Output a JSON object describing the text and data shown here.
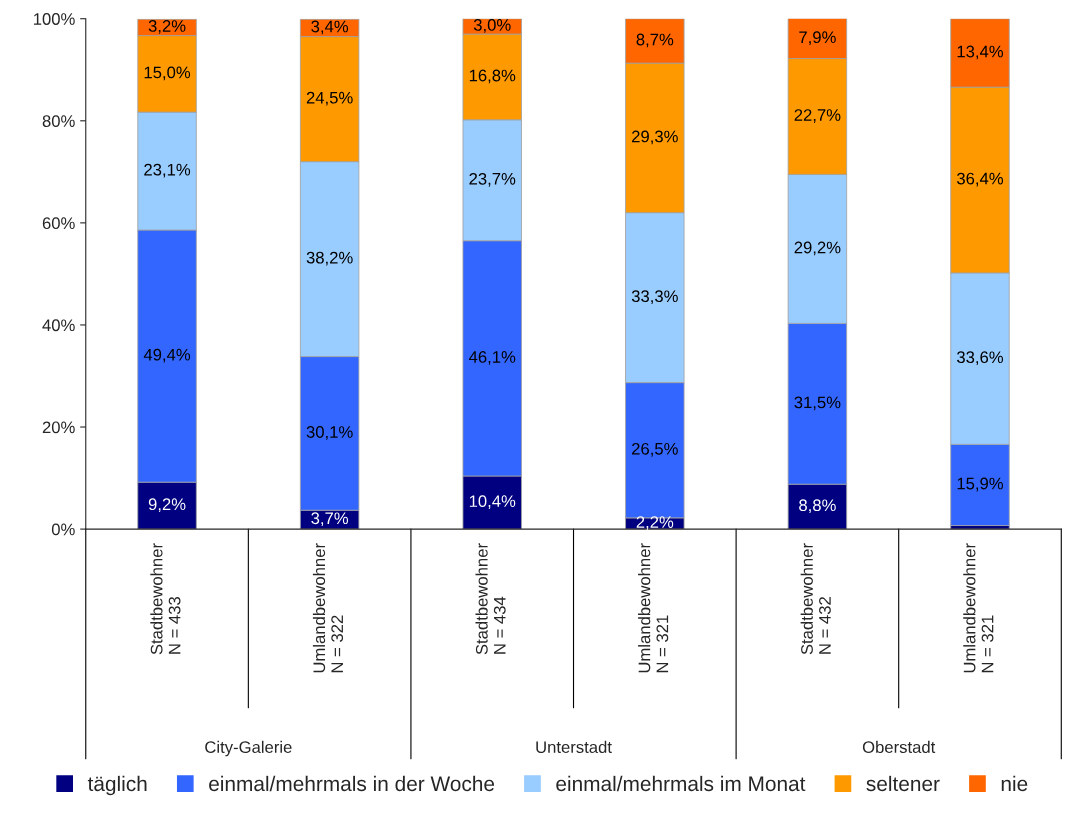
{
  "chart_data": {
    "type": "bar",
    "stacked": true,
    "categories": [
      "Stadtbewohner\nN = 433",
      "Umlandbewohner\nN = 322",
      "Stadtbewohner\nN = 434",
      "Umlandbewohner\nN = 321",
      "Stadtbewohner\nN = 432",
      "Umlandbewohner\nN = 321"
    ],
    "series": [
      {
        "name": "täglich",
        "color": "#000080",
        "values": [
          9.2,
          3.7,
          10.4,
          2.2,
          8.8,
          0.7
        ],
        "value_labels": [
          "9,2%",
          "3,7%",
          "10,4%",
          "2,2%",
          "8,8%",
          null
        ]
      },
      {
        "name": "einmal/mehrmals in der Woche",
        "color": "#3366ff",
        "values": [
          49.4,
          30.1,
          46.1,
          26.5,
          31.5,
          15.9
        ],
        "value_labels": [
          "49,4%",
          "30,1%",
          "46,1%",
          "26,5%",
          "31,5%",
          "15,9%"
        ]
      },
      {
        "name": "einmal/mehrmals im Monat",
        "color": "#99ccff",
        "values": [
          23.1,
          38.2,
          23.7,
          33.3,
          29.2,
          33.6
        ],
        "value_labels": [
          "23,1%",
          "38,2%",
          "23,7%",
          "33,3%",
          "29,2%",
          "33,6%"
        ]
      },
      {
        "name": "seltener",
        "color": "#ff9900",
        "values": [
          15.0,
          24.5,
          16.8,
          29.3,
          22.7,
          36.4
        ],
        "value_labels": [
          "15,0%",
          "24,5%",
          "16,8%",
          "29,3%",
          "22,7%",
          "36,4%"
        ]
      },
      {
        "name": "nie",
        "color": "#ff6600",
        "values": [
          3.2,
          3.4,
          3.0,
          8.7,
          7.9,
          13.4
        ],
        "value_labels": [
          "3,2%",
          "3,4%",
          "3,0%",
          "8,7%",
          "7,9%",
          "13,4%"
        ]
      }
    ],
    "ylim": [
      0,
      100
    ],
    "yticks": [
      {
        "value": 0,
        "label": "0%"
      },
      {
        "value": 20,
        "label": "20%"
      },
      {
        "value": 40,
        "label": "40%"
      },
      {
        "value": 60,
        "label": "60%"
      },
      {
        "value": 80,
        "label": "80%"
      },
      {
        "value": 100,
        "label": "100%"
      }
    ],
    "annotations": [
      "City-Galerie",
      "Unterstadt",
      "Oberstadt"
    ],
    "legend": "bottom",
    "marker": "square",
    "grid": false
  }
}
